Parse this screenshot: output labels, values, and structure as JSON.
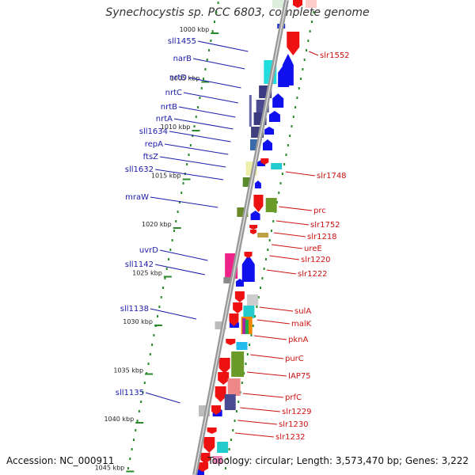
{
  "title": "Synechocystis sp. PCC 6803, complete genome",
  "footer": {
    "accession": "Accession: NC_000911",
    "stats": "Topology: circular; Length: 3,573,470 bp; Genes: 3,222"
  },
  "colors": {
    "backbone": "#9a9a9a",
    "dots": "#2a8a2a",
    "forward_label": "#1a1aaa",
    "reverse_label": "#cc1111",
    "forward_arrow": "#1010ee",
    "reverse_arrow": "#ee1111"
  },
  "scale_ticks": [
    "1000 kbp",
    "1005 kbp",
    "1010 kbp",
    "1015 kbp",
    "1020 kbp",
    "1025 kbp",
    "1030 kbp",
    "1035 kbp",
    "1040 kbp",
    "1045 kbp"
  ],
  "left_labels": [
    "sll1455",
    "narB",
    "nrtD",
    "nrtC",
    "nrtB",
    "nrtA",
    "sll1634",
    "repA",
    "ftsZ",
    "sll1632",
    "mraW",
    "uvrD",
    "sll1142",
    "sll1138",
    "sll1135"
  ],
  "right_labels": [
    "slr1552",
    "slr1748",
    "prc",
    "slr1752",
    "slr1218",
    "ureE",
    "slr1220",
    "slr1222",
    "sulA",
    "malK",
    "pknA",
    "purC",
    "IAP75",
    "prfC",
    "slr1229",
    "slr1230",
    "slr1232"
  ]
}
